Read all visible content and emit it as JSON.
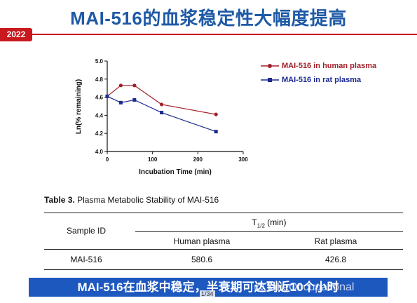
{
  "slide": {
    "title": "MAI-516的血浆稳定性大幅度提高",
    "year_badge": "2022",
    "accent_color": "#c9181e",
    "title_color": "#1f5aa6"
  },
  "chart_data": {
    "type": "line",
    "xlabel": "Incubation Time (min)",
    "ylabel": "Ln(% remaining)",
    "xlim": [
      0,
      300
    ],
    "ylim": [
      4.0,
      5.0
    ],
    "x_ticks": [
      "0",
      "100",
      "200",
      "300"
    ],
    "y_ticks": [
      "4.0",
      "4.2",
      "4.4",
      "4.6",
      "4.8",
      "5.0"
    ],
    "grid": false,
    "legend_position": "right",
    "series": [
      {
        "name": "MAI-516 in human plasma",
        "color": "#a3202a",
        "marker": "circle",
        "x": [
          0,
          30,
          60,
          120,
          240
        ],
        "y": [
          4.61,
          4.73,
          4.73,
          4.52,
          4.41
        ]
      },
      {
        "name": "MAI-516 in rat plasma",
        "color": "#1b2a8f",
        "marker": "square",
        "x": [
          0,
          30,
          60,
          120,
          240
        ],
        "y": [
          4.61,
          4.54,
          4.57,
          4.43,
          4.22
        ]
      }
    ]
  },
  "table": {
    "caption_bold": "Table 3.",
    "caption_text": " Plasma Metabolic Stability of MAI-516",
    "col_sample": "Sample ID",
    "col_t_main": "T",
    "col_t_sub": "1/2",
    "col_t_unit": " (min)",
    "col_human": "Human plasma",
    "col_rat": "Rat plasma",
    "row_id": "MAI-516",
    "row_human": "580.6",
    "row_rat": "426.8"
  },
  "banner": {
    "text": "MAI-516在血浆中稳定，半衰期可达到近10个小时"
  },
  "overlay": {
    "watermark": "@TakeOccupational",
    "page_counter": "1/34"
  }
}
